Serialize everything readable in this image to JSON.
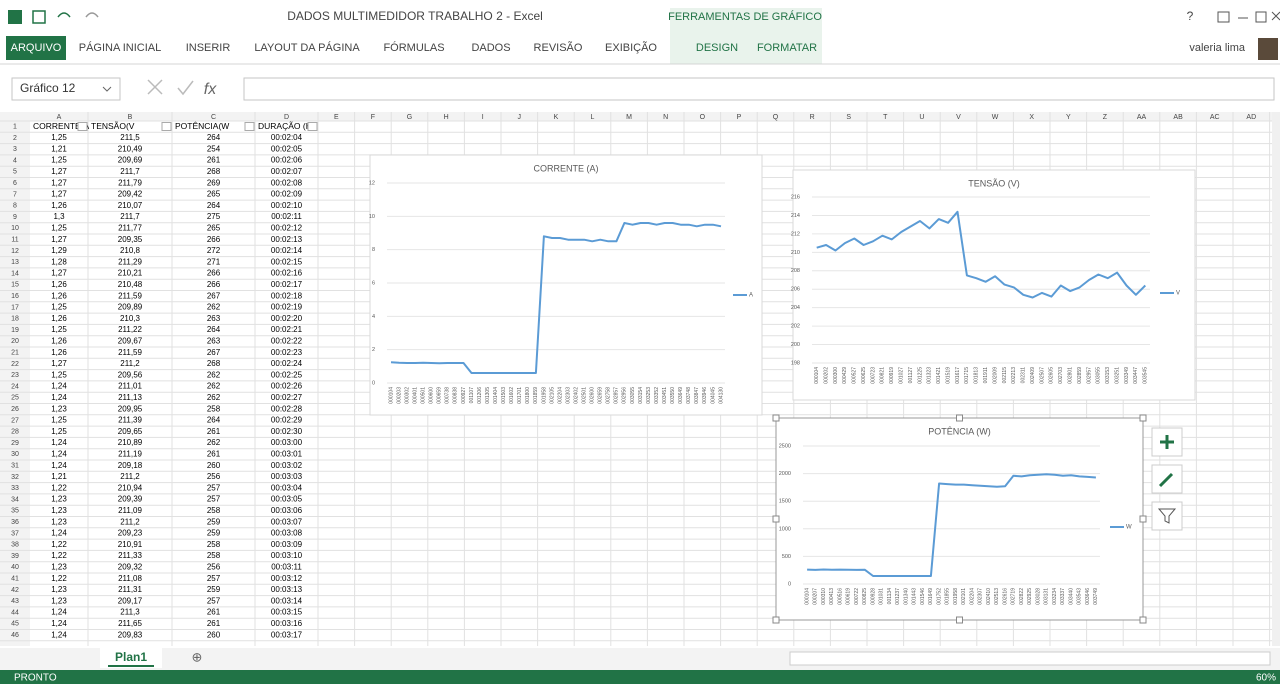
{
  "window": {
    "title": "DADOS MULTIMEDIDOR TRABALHO 2 - Excel",
    "context_tab": "FERRAMENTAS DE GRÁFICO",
    "help": "?",
    "user": "valeria lima"
  },
  "ribbon": {
    "tabs": [
      "ARQUIVO",
      "PÁGINA INICIAL",
      "INSERIR",
      "LAYOUT DA PÁGINA",
      "FÓRMULAS",
      "DADOS",
      "REVISÃO",
      "EXIBIÇÃO"
    ],
    "context_tabs": [
      "DESIGN",
      "FORMATAR"
    ]
  },
  "formula_bar": {
    "name_box": "Gráfico 12",
    "fx": "fx"
  },
  "sheet": {
    "columns": [
      "A",
      "B",
      "C",
      "D",
      "E",
      "F",
      "G",
      "H",
      "I",
      "J",
      "K",
      "L",
      "M",
      "N",
      "O",
      "P",
      "Q",
      "R",
      "S",
      "T",
      "U",
      "V",
      "W",
      "X",
      "Y",
      "Z",
      "AA",
      "AB",
      "AC",
      "AD"
    ],
    "row_numbers": [
      1,
      2,
      3,
      4,
      5,
      6,
      7,
      8,
      9,
      10,
      11,
      12,
      13,
      14,
      15,
      16,
      17,
      18,
      19,
      20,
      21,
      22,
      23,
      24,
      25,
      26,
      27,
      28,
      29,
      30,
      31,
      32,
      33,
      34,
      35,
      36,
      37,
      38,
      39,
      40,
      41,
      42,
      43,
      44,
      45,
      46
    ],
    "header": [
      "CORRENTE(A",
      "TENSÃO(V",
      "POTÊNCIA(W",
      "DURAÇÃO (HR"
    ],
    "rows": [
      [
        "1,25",
        "211,5",
        "264",
        "00:02:04"
      ],
      [
        "1,21",
        "210,49",
        "254",
        "00:02:05"
      ],
      [
        "1,25",
        "209,69",
        "261",
        "00:02:06"
      ],
      [
        "1,27",
        "211,7",
        "268",
        "00:02:07"
      ],
      [
        "1,27",
        "211,79",
        "269",
        "00:02:08"
      ],
      [
        "1,27",
        "209,42",
        "265",
        "00:02:09"
      ],
      [
        "1,26",
        "210,07",
        "264",
        "00:02:10"
      ],
      [
        "1,3",
        "211,7",
        "275",
        "00:02:11"
      ],
      [
        "1,25",
        "211,77",
        "265",
        "00:02:12"
      ],
      [
        "1,27",
        "209,35",
        "266",
        "00:02:13"
      ],
      [
        "1,29",
        "210,8",
        "272",
        "00:02:14"
      ],
      [
        "1,28",
        "211,29",
        "271",
        "00:02:15"
      ],
      [
        "1,27",
        "210,21",
        "266",
        "00:02:16"
      ],
      [
        "1,26",
        "210,48",
        "266",
        "00:02:17"
      ],
      [
        "1,26",
        "211,59",
        "267",
        "00:02:18"
      ],
      [
        "1,25",
        "209,89",
        "262",
        "00:02:19"
      ],
      [
        "1,26",
        "210,3",
        "263",
        "00:02:20"
      ],
      [
        "1,25",
        "211,22",
        "264",
        "00:02:21"
      ],
      [
        "1,26",
        "209,67",
        "263",
        "00:02:22"
      ],
      [
        "1,26",
        "211,59",
        "267",
        "00:02:23"
      ],
      [
        "1,27",
        "211,2",
        "268",
        "00:02:24"
      ],
      [
        "1,25",
        "209,56",
        "262",
        "00:02:25"
      ],
      [
        "1,24",
        "211,01",
        "262",
        "00:02:26"
      ],
      [
        "1,24",
        "211,13",
        "262",
        "00:02:27"
      ],
      [
        "1,23",
        "209,95",
        "258",
        "00:02:28"
      ],
      [
        "1,25",
        "211,39",
        "264",
        "00:02:29"
      ],
      [
        "1,25",
        "209,65",
        "261",
        "00:02:30"
      ],
      [
        "1,24",
        "210,89",
        "262",
        "00:03:00"
      ],
      [
        "1,24",
        "211,19",
        "261",
        "00:03:01"
      ],
      [
        "1,24",
        "209,18",
        "260",
        "00:03:02"
      ],
      [
        "1,21",
        "211,2",
        "256",
        "00:03:03"
      ],
      [
        "1,22",
        "210,94",
        "257",
        "00:03:04"
      ],
      [
        "1,23",
        "209,39",
        "257",
        "00:03:05"
      ],
      [
        "1,23",
        "211,09",
        "258",
        "00:03:06"
      ],
      [
        "1,23",
        "211,2",
        "259",
        "00:03:07"
      ],
      [
        "1,24",
        "209,23",
        "259",
        "00:03:08"
      ],
      [
        "1,22",
        "210,91",
        "258",
        "00:03:09"
      ],
      [
        "1,22",
        "211,33",
        "258",
        "00:03:10"
      ],
      [
        "1,23",
        "209,32",
        "256",
        "00:03:11"
      ],
      [
        "1,22",
        "211,08",
        "257",
        "00:03:12"
      ],
      [
        "1,23",
        "211,31",
        "259",
        "00:03:13"
      ],
      [
        "1,23",
        "209,17",
        "257",
        "00:03:14"
      ],
      [
        "1,24",
        "211,3",
        "261",
        "00:03:15"
      ],
      [
        "1,24",
        "211,65",
        "261",
        "00:03:16"
      ],
      [
        "1,24",
        "209,83",
        "260",
        "00:03:17"
      ]
    ]
  },
  "charts": [
    {
      "type": "line",
      "title": "CORRENTE (A)",
      "legend": "A",
      "color": "#5b9bd5",
      "ylim": [
        0,
        12
      ],
      "yticks": [
        0,
        2,
        4,
        6,
        8,
        10,
        12
      ],
      "x": [
        "000104",
        "000203",
        "000302",
        "000401",
        "000501",
        "000600",
        "000659",
        "000738",
        "000838",
        "000927",
        "001107",
        "001206",
        "001305",
        "001404",
        "001503",
        "001602",
        "001701",
        "001800",
        "001859",
        "001958",
        "002105",
        "002204",
        "002303",
        "002402",
        "002501",
        "002600",
        "002659",
        "002758",
        "002857",
        "002956",
        "003055",
        "003154",
        "003253",
        "003352",
        "003451",
        "003550",
        "003649",
        "003748",
        "003847",
        "003946",
        "004045",
        "004130"
      ],
      "values": [
        1.25,
        1.22,
        1.2,
        1.2,
        1.21,
        1.2,
        1.19,
        1.2,
        1.2,
        1.2,
        0.6,
        0.6,
        0.6,
        0.6,
        0.6,
        0.6,
        0.6,
        0.6,
        0.6,
        8.8,
        8.7,
        8.7,
        8.6,
        8.6,
        8.6,
        8.5,
        8.6,
        8.5,
        8.5,
        9.6,
        9.5,
        9.6,
        9.6,
        9.5,
        9.6,
        9.6,
        9.5,
        9.5,
        9.4,
        9.5,
        9.5,
        9.4
      ]
    },
    {
      "type": "line",
      "title": "TENSÃO (V)",
      "legend": "V",
      "color": "#5b9bd5",
      "ylim": [
        198,
        216
      ],
      "yticks": [
        198,
        200,
        202,
        204,
        206,
        208,
        210,
        212,
        214,
        216
      ],
      "x": [
        "000104",
        "000202",
        "000300",
        "000429",
        "000527",
        "000625",
        "000723",
        "000821",
        "000919",
        "001027",
        "001127",
        "001225",
        "001323",
        "001421",
        "001519",
        "001617",
        "001715",
        "001813",
        "001911",
        "002009",
        "002115",
        "002213",
        "002311",
        "002409",
        "002507",
        "002605",
        "002703",
        "002801",
        "002859",
        "002957",
        "003055",
        "003153",
        "003251",
        "003349",
        "003447",
        "003545"
      ],
      "values": [
        210.5,
        210.8,
        210.2,
        211,
        211.5,
        210.8,
        211.2,
        211.8,
        211.4,
        212.2,
        212.8,
        213.4,
        212.6,
        213.6,
        213.2,
        214.4,
        207.5,
        207.2,
        206.8,
        207.4,
        206.5,
        206.2,
        205.4,
        205.1,
        205.6,
        205.2,
        206.4,
        205.8,
        206.2,
        207,
        207.6,
        207.2,
        207.8,
        206.4,
        205.4,
        206.4
      ]
    },
    {
      "type": "line",
      "title": "POTÊNCIA  (W)",
      "legend": "W",
      "color": "#5b9bd5",
      "ylim": [
        0,
        2500
      ],
      "yticks": [
        0,
        500,
        1000,
        1500,
        2000,
        2500
      ],
      "x": [
        "000104",
        "000207",
        "000310",
        "000413",
        "000516",
        "000619",
        "000722",
        "000825",
        "000928",
        "001031",
        "001134",
        "001237",
        "001340",
        "001443",
        "001546",
        "001649",
        "001752",
        "001855",
        "001958",
        "002101",
        "002204",
        "002307",
        "002410",
        "002513",
        "002616",
        "002719",
        "002822",
        "002925",
        "003028",
        "003131",
        "003234",
        "003337",
        "003440",
        "003543",
        "003646",
        "003749"
      ],
      "values": [
        260,
        255,
        262,
        258,
        260,
        257,
        255,
        258,
        145,
        145,
        145,
        145,
        145,
        145,
        145,
        145,
        1820,
        1810,
        1800,
        1800,
        1790,
        1780,
        1770,
        1760,
        1770,
        1960,
        1950,
        1970,
        1980,
        1990,
        1980,
        1960,
        1970,
        1950,
        1940,
        1930
      ]
    }
  ],
  "sheet_tabs": {
    "sheets": [
      "Plan1"
    ],
    "add": "⊕"
  },
  "status": {
    "text": "PRONTO",
    "zoom": "60%"
  }
}
